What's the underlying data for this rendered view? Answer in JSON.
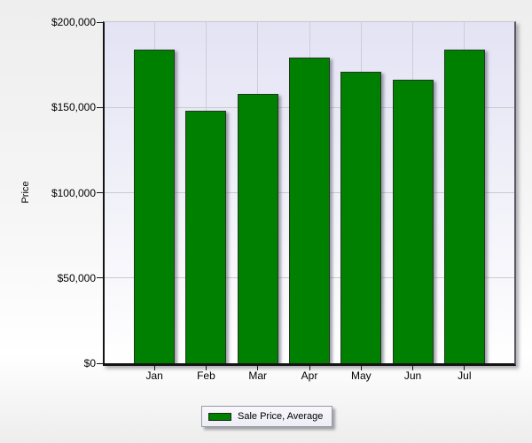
{
  "chart_data": {
    "type": "bar",
    "title": "",
    "categories": [
      "Jan",
      "Feb",
      "Mar",
      "Apr",
      "May",
      "Jun",
      "Jul"
    ],
    "series": [
      {
        "name": "Sale Price, Average",
        "color": "#008000",
        "values": [
          184000,
          148000,
          158000,
          179000,
          171000,
          166000,
          184000
        ]
      }
    ],
    "xlabel": "",
    "ylabel": "Price",
    "ylim": [
      0,
      200000
    ],
    "ytick_interval": 50000,
    "ytick_labels": [
      "$0",
      "$50,000",
      "$100,000",
      "$150,000",
      "$200,000"
    ],
    "grid": "on",
    "legend_position": "bottom-center"
  },
  "legend": {
    "label": "Sale Price, Average",
    "swatch_color": "#008000"
  },
  "colors": {
    "bar_fill": "#008000",
    "bar_border": "#24361f",
    "plot_bg_top": "#e3e3f5",
    "plot_bg_bottom": "#ffffff",
    "gridline": "#c9c9d4",
    "axis_line": "#141414",
    "page_bg_top": "#eeeeee",
    "page_bg_bottom": "#ededed"
  }
}
